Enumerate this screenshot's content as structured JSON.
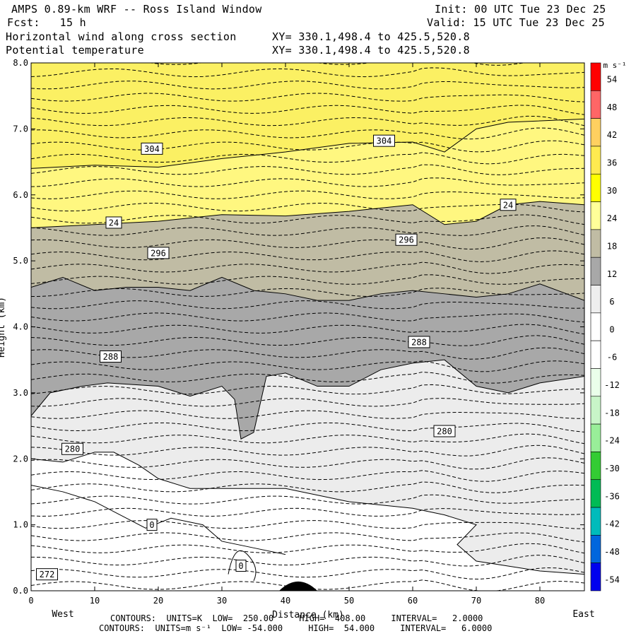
{
  "header": {
    "title": "AMPS 0.89-km WRF -- Ross Island Window",
    "fcst": "Fcst:   15 h",
    "init": "Init: 00 UTC Tue 23 Dec 25",
    "valid": "Valid: 15 UTC Tue 23 Dec 25",
    "field1": "Horizontal wind along cross section",
    "field1_xy": "XY= 330.1,498.4 to 425.5,520.8",
    "field2": "Potential temperature",
    "field2_xy": "XY= 330.1,498.4 to 425.5,520.8"
  },
  "footer": {
    "line1": "CONTOURS:  UNITS=K  LOW=  250.00     HIGH=  408.00     INTERVAL=   2.0000",
    "line2": "CONTOURS:  UNITS=m s⁻¹  LOW= -54.000     HIGH=  54.000     INTERVAL=   6.0000"
  },
  "chart_data": {
    "type": "heatmap",
    "xlabel": "Distance (km)",
    "ylabel": "Height (km)",
    "xlim": [
      0,
      87
    ],
    "ylim": [
      0,
      8
    ],
    "x_ticks": [
      0,
      10,
      20,
      30,
      40,
      50,
      60,
      70,
      80
    ],
    "y_ticks": [
      "0.0",
      "1.0",
      "2.0",
      "3.0",
      "4.0",
      "5.0",
      "6.0",
      "7.0",
      "8.0"
    ],
    "x_end_labels": {
      "left": "West",
      "right": "East"
    },
    "colorbar": {
      "units": "m s⁻¹",
      "tick_labels": [
        "54",
        "48",
        "42",
        "36",
        "30",
        "24",
        "18",
        "12",
        "6",
        "0",
        "-6",
        "-12",
        "-18",
        "-24",
        "-30",
        "-36",
        "-42",
        "-48",
        "-54"
      ],
      "colors": [
        "#ff0000",
        "#ff6666",
        "#ffd060",
        "#ffea50",
        "#ffff00",
        "#ffff99",
        "#c0bca4",
        "#a8a8a8",
        "#eeeeee",
        "#ffffff",
        "#ffffff",
        "#eaffea",
        "#c8f5c8",
        "#99ee99",
        "#33cc33",
        "#00bb55",
        "#00bbbb",
        "#0066dd",
        "#0000ee"
      ]
    },
    "wind_contour_labels": [
      {
        "x": 19,
        "y": 1.0,
        "text": "0"
      },
      {
        "x": 33,
        "y": 0.38,
        "text": "0"
      },
      {
        "x": 13,
        "y": 5.58,
        "text": "24"
      },
      {
        "x": 75,
        "y": 5.85,
        "text": "24"
      }
    ],
    "theta_contour_labels": [
      {
        "x": 19,
        "y": 6.7,
        "text": "304"
      },
      {
        "x": 55.5,
        "y": 6.82,
        "text": "304"
      },
      {
        "x": 20,
        "y": 5.12,
        "text": "296"
      },
      {
        "x": 59,
        "y": 5.32,
        "text": "296"
      },
      {
        "x": 12.5,
        "y": 3.55,
        "text": "288"
      },
      {
        "x": 61,
        "y": 3.77,
        "text": "288"
      },
      {
        "x": 6.5,
        "y": 2.15,
        "text": "280"
      },
      {
        "x": 65,
        "y": 2.42,
        "text": "280"
      },
      {
        "x": 2.5,
        "y": 0.25,
        "text": "272"
      }
    ],
    "wind_band_boundaries_km": {
      "24_m_s": [
        [
          0,
          5.5
        ],
        [
          10,
          5.55
        ],
        [
          20,
          5.6
        ],
        [
          30,
          5.7
        ],
        [
          40,
          5.68
        ],
        [
          50,
          5.75
        ],
        [
          55,
          5.8
        ],
        [
          60,
          5.85
        ],
        [
          65,
          5.55
        ],
        [
          70,
          5.6
        ],
        [
          75,
          5.85
        ],
        [
          80,
          5.9
        ],
        [
          87,
          5.85
        ]
      ],
      "18_m_s": [
        [
          0,
          4.6
        ],
        [
          5,
          4.75
        ],
        [
          10,
          4.55
        ],
        [
          15,
          4.6
        ],
        [
          20,
          4.6
        ],
        [
          25,
          4.55
        ],
        [
          30,
          4.75
        ],
        [
          35,
          4.55
        ],
        [
          40,
          4.5
        ],
        [
          45,
          4.4
        ],
        [
          50,
          4.4
        ],
        [
          55,
          4.5
        ],
        [
          60,
          4.55
        ],
        [
          65,
          4.5
        ],
        [
          70,
          4.45
        ],
        [
          75,
          4.5
        ],
        [
          80,
          4.65
        ],
        [
          87,
          4.4
        ]
      ],
      "12_m_s": [
        [
          0,
          2.65
        ],
        [
          3,
          3.0
        ],
        [
          8,
          3.1
        ],
        [
          12,
          3.15
        ],
        [
          20,
          3.1
        ],
        [
          25,
          2.95
        ],
        [
          30,
          3.1
        ],
        [
          32,
          2.9
        ],
        [
          33,
          2.3
        ],
        [
          35,
          2.4
        ],
        [
          37,
          3.25
        ],
        [
          40,
          3.3
        ],
        [
          45,
          3.1
        ],
        [
          50,
          3.1
        ],
        [
          55,
          3.35
        ],
        [
          60,
          3.45
        ],
        [
          65,
          3.5
        ],
        [
          70,
          3.1
        ],
        [
          75,
          3.0
        ],
        [
          80,
          3.15
        ],
        [
          87,
          3.25
        ]
      ],
      "6_m_s": [
        [
          0,
          2.0
        ],
        [
          5,
          1.95
        ],
        [
          10,
          2.1
        ],
        [
          13,
          2.1
        ],
        [
          17,
          1.9
        ],
        [
          20,
          1.7
        ],
        [
          25,
          1.55
        ],
        [
          30,
          1.55
        ],
        [
          35,
          1.55
        ],
        [
          40,
          1.55
        ],
        [
          45,
          1.45
        ],
        [
          50,
          1.35
        ],
        [
          55,
          1.3
        ],
        [
          60,
          1.25
        ],
        [
          65,
          1.15
        ],
        [
          70,
          1.0
        ],
        [
          67,
          0.7
        ],
        [
          70,
          0.45
        ],
        [
          80,
          0.3
        ],
        [
          87,
          0.25
        ]
      ]
    }
  }
}
